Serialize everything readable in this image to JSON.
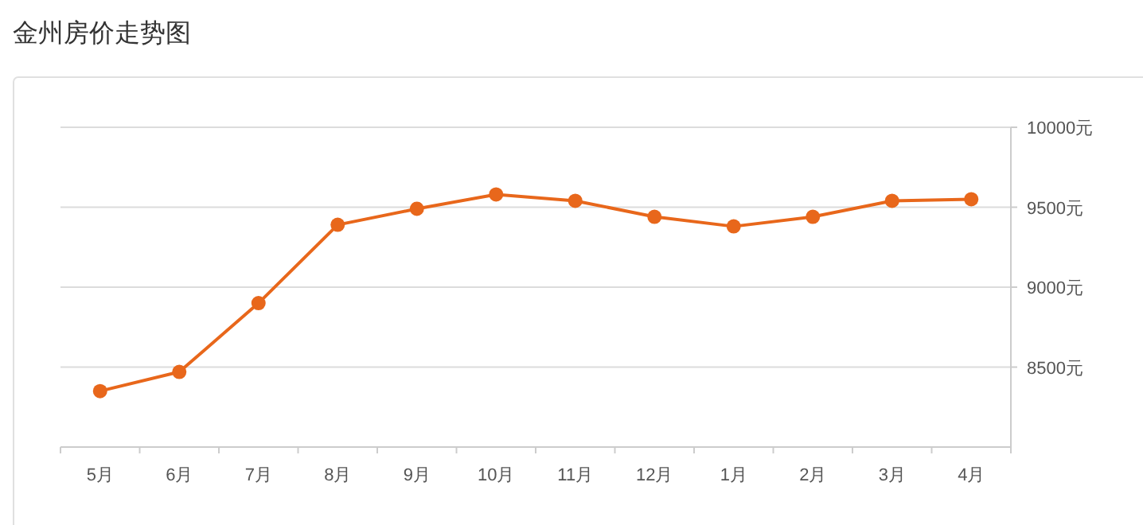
{
  "chart_data": {
    "type": "line",
    "title": "金州房价走势图",
    "categories": [
      "5月",
      "6月",
      "7月",
      "8月",
      "9月",
      "10月",
      "11月",
      "12月",
      "1月",
      "2月",
      "3月",
      "4月"
    ],
    "series": [
      {
        "color": "#e8671b",
        "values": [
          8350,
          8470,
          8900,
          9390,
          9490,
          9580,
          9540,
          9440,
          9380,
          9440,
          9540,
          9550
        ]
      }
    ],
    "ylim": [
      8000,
      10000
    ],
    "yticks": [
      {
        "value": 8500,
        "label": "8500元"
      },
      {
        "value": 9000,
        "label": "9000元"
      },
      {
        "value": 9500,
        "label": "9500元"
      },
      {
        "value": 10000,
        "label": "10000元"
      }
    ],
    "grid": "y",
    "marker": "circle"
  }
}
